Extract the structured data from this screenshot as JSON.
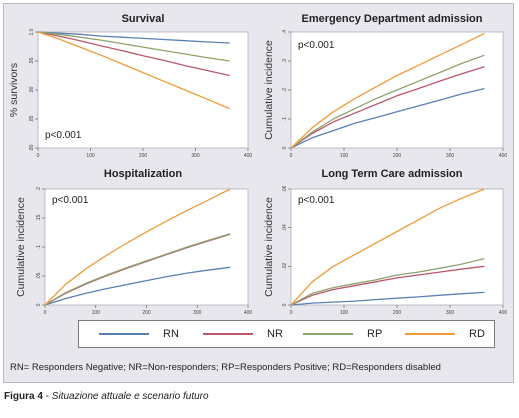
{
  "caption": {
    "label": "Figura 4",
    "separator": " - ",
    "text": "Situazione attuale e scenario futuro"
  },
  "definitions_note": "RN= Responders Negative; NR=Non-responders; RP=Responders Positive; RD=Responders disabled",
  "legend": {
    "items": [
      {
        "label": "RN",
        "color": "#5b80b3"
      },
      {
        "label": "NR",
        "color": "#b9586b"
      },
      {
        "label": "RP",
        "color": "#8ea36d"
      },
      {
        "label": "RD",
        "color": "#ee9b38"
      }
    ]
  },
  "chart_data": [
    {
      "type": "line",
      "title": "Survival",
      "ylabel": "% survivors",
      "xlabel": "",
      "annotation": "p<0.001",
      "xlim": [
        0,
        400
      ],
      "ylim": [
        0.8,
        1.0
      ],
      "xticks": [
        "0",
        "100",
        "200",
        "300",
        "400"
      ],
      "yticks": [
        ".80",
        ".85",
        ".90",
        ".95",
        "1.0"
      ],
      "x": [
        0,
        40,
        80,
        120,
        160,
        200,
        240,
        280,
        320,
        365
      ],
      "series": [
        {
          "name": "RN",
          "values": [
            1.0,
            0.998,
            0.996,
            0.993,
            0.991,
            0.989,
            0.987,
            0.985,
            0.983,
            0.981
          ]
        },
        {
          "name": "NR",
          "values": [
            1.0,
            0.993,
            0.985,
            0.976,
            0.968,
            0.959,
            0.951,
            0.942,
            0.934,
            0.925
          ]
        },
        {
          "name": "RP",
          "values": [
            1.0,
            0.996,
            0.991,
            0.986,
            0.98,
            0.974,
            0.968,
            0.962,
            0.956,
            0.95
          ]
        },
        {
          "name": "RD",
          "values": [
            1.0,
            0.988,
            0.974,
            0.96,
            0.945,
            0.93,
            0.915,
            0.9,
            0.885,
            0.868
          ]
        }
      ]
    },
    {
      "type": "line",
      "title": "Emergency Department admission",
      "ylabel": "Cumulative incidence",
      "xlabel": "",
      "annotation": "p<0.001",
      "xlim": [
        0,
        400
      ],
      "ylim": [
        0,
        0.4
      ],
      "xticks": [
        "0",
        "100",
        "200",
        "300",
        "400"
      ],
      "yticks": [
        "0",
        ".1",
        ".2",
        ".3",
        ".4"
      ],
      "x": [
        0,
        40,
        80,
        120,
        160,
        200,
        240,
        280,
        320,
        365
      ],
      "series": [
        {
          "name": "RN",
          "values": [
            0,
            0.035,
            0.06,
            0.085,
            0.105,
            0.125,
            0.145,
            0.165,
            0.185,
            0.205
          ]
        },
        {
          "name": "NR",
          "values": [
            0,
            0.05,
            0.09,
            0.12,
            0.15,
            0.18,
            0.205,
            0.23,
            0.255,
            0.28
          ]
        },
        {
          "name": "RP",
          "values": [
            0,
            0.055,
            0.1,
            0.135,
            0.17,
            0.2,
            0.23,
            0.26,
            0.29,
            0.32
          ]
        },
        {
          "name": "RD",
          "values": [
            0,
            0.07,
            0.125,
            0.17,
            0.21,
            0.25,
            0.285,
            0.32,
            0.355,
            0.395
          ]
        }
      ]
    },
    {
      "type": "line",
      "title": "Hospitalization",
      "ylabel": "Cumulative incidence",
      "xlabel": "",
      "annotation": "p<0.001",
      "xlim": [
        0,
        400
      ],
      "ylim": [
        0,
        0.2
      ],
      "xticks": [
        "0",
        "100",
        "200",
        "300",
        "400"
      ],
      "yticks": [
        "0",
        ".05",
        ".1",
        ".15",
        ".2"
      ],
      "x": [
        0,
        40,
        80,
        120,
        160,
        200,
        240,
        280,
        320,
        365
      ],
      "series": [
        {
          "name": "RN",
          "values": [
            0,
            0.011,
            0.02,
            0.028,
            0.035,
            0.042,
            0.049,
            0.055,
            0.06,
            0.065
          ]
        },
        {
          "name": "NR",
          "values": [
            0,
            0.02,
            0.036,
            0.05,
            0.063,
            0.075,
            0.087,
            0.099,
            0.11,
            0.122
          ]
        },
        {
          "name": "RP",
          "values": [
            0,
            0.021,
            0.037,
            0.051,
            0.064,
            0.076,
            0.088,
            0.1,
            0.111,
            0.123
          ]
        },
        {
          "name": "RD",
          "values": [
            0,
            0.035,
            0.062,
            0.085,
            0.106,
            0.126,
            0.145,
            0.163,
            0.18,
            0.2
          ]
        }
      ]
    },
    {
      "type": "line",
      "title": "Long Term Care admission",
      "ylabel": "Cumulative incidence",
      "xlabel": "",
      "annotation": "p<0.001",
      "xlim": [
        0,
        400
      ],
      "ylim": [
        0,
        0.06
      ],
      "xticks": [
        "0",
        "100",
        "200",
        "300",
        "400"
      ],
      "yticks": [
        "0",
        ".02",
        ".04",
        ".06"
      ],
      "x": [
        0,
        40,
        80,
        120,
        160,
        200,
        240,
        280,
        320,
        365
      ],
      "series": [
        {
          "name": "RN",
          "values": [
            0,
            0.001,
            0.0015,
            0.002,
            0.0028,
            0.0035,
            0.0042,
            0.005,
            0.0058,
            0.0065
          ]
        },
        {
          "name": "NR",
          "values": [
            0,
            0.005,
            0.008,
            0.01,
            0.012,
            0.014,
            0.0155,
            0.017,
            0.0185,
            0.02
          ]
        },
        {
          "name": "RP",
          "values": [
            0,
            0.006,
            0.009,
            0.011,
            0.013,
            0.0155,
            0.017,
            0.019,
            0.021,
            0.024
          ]
        },
        {
          "name": "RD",
          "values": [
            0,
            0.012,
            0.02,
            0.026,
            0.032,
            0.038,
            0.044,
            0.05,
            0.055,
            0.06
          ]
        }
      ]
    }
  ]
}
